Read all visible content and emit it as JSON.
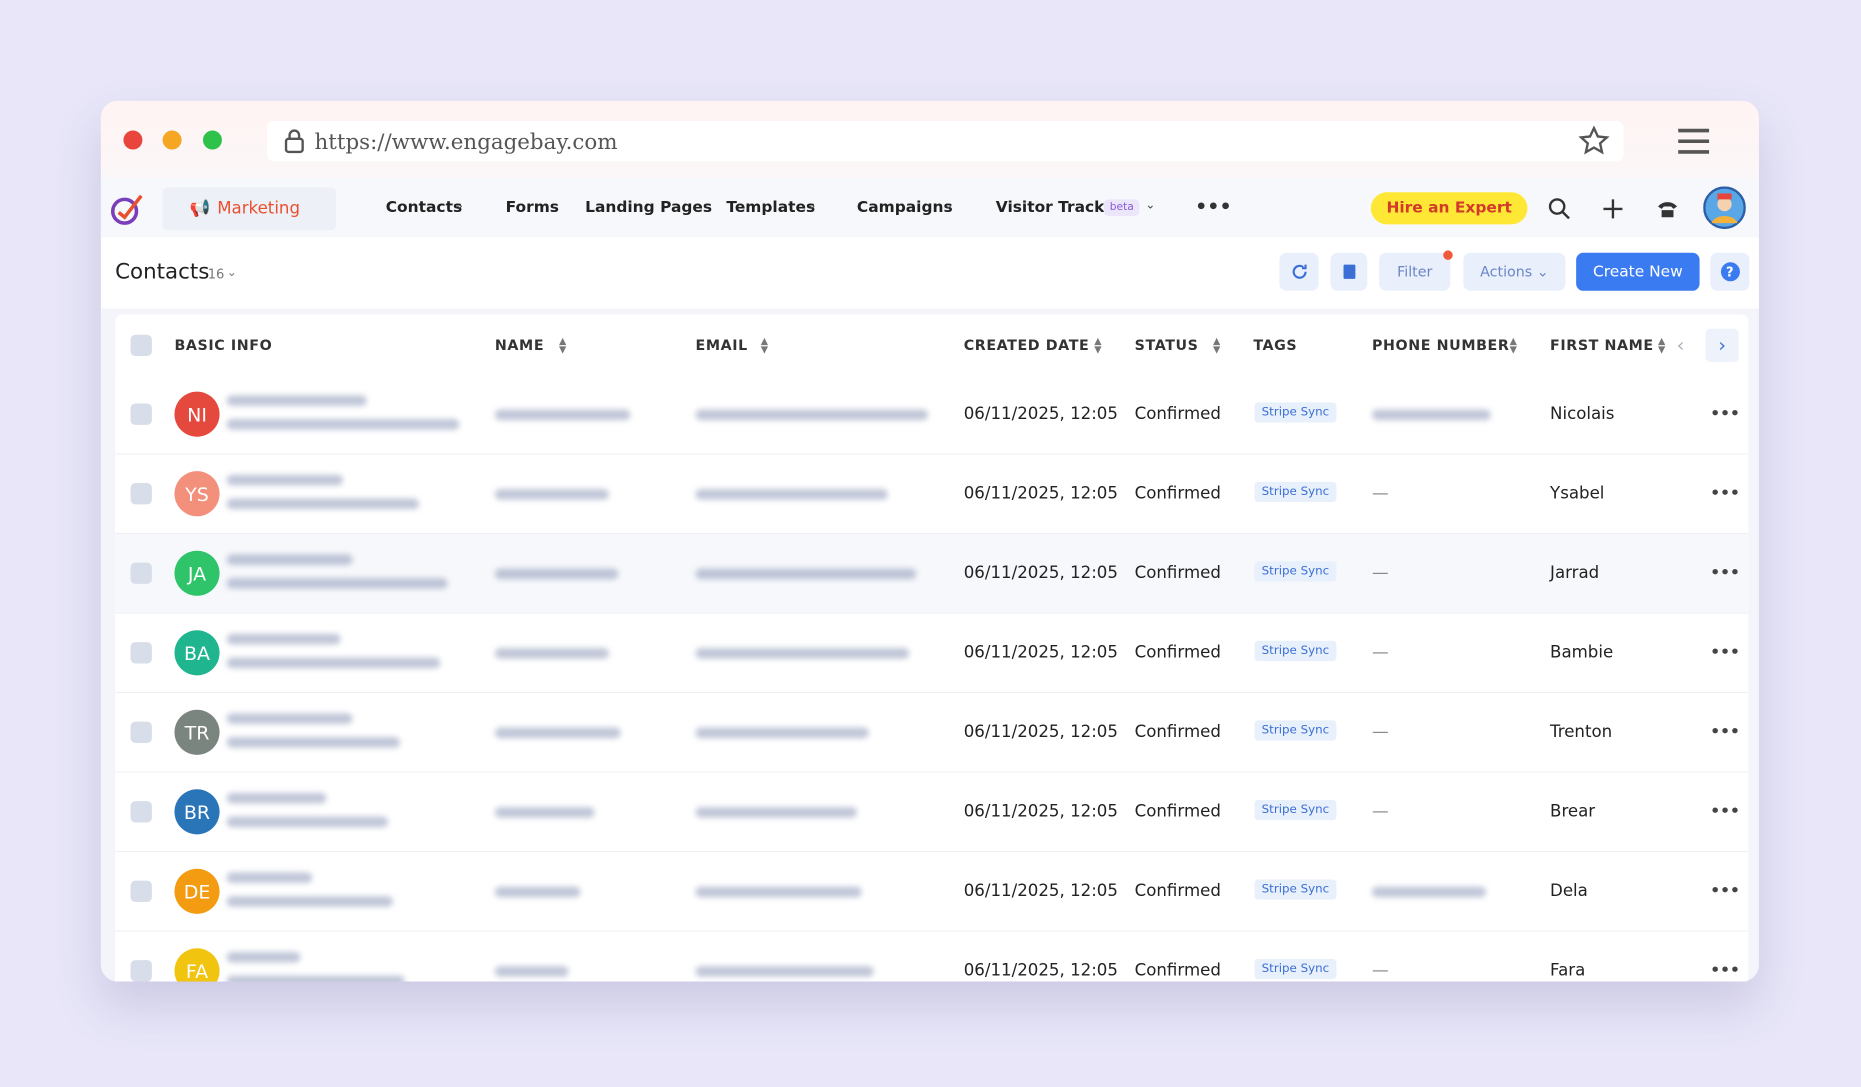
{
  "browser": {
    "url": "https://www.engagebay.com"
  },
  "nav": {
    "module": "Marketing",
    "items": [
      "Contacts",
      "Forms",
      "Landing Pages",
      "Templates",
      "Campaigns",
      "Visitor Tracker"
    ],
    "badge": "beta",
    "cta": "Hire an Expert"
  },
  "toolbar": {
    "title": "Contacts",
    "count": "16",
    "filter": "Filter",
    "actions": "Actions",
    "create": "Create New",
    "help": "?"
  },
  "table": {
    "columns": [
      "BASIC INFO",
      "NAME",
      "EMAIL",
      "CREATED DATE",
      "STATUS",
      "TAGS",
      "PHONE NUMBER",
      "FIRST NAME"
    ],
    "rows": [
      {
        "initials": "NI",
        "color": "#e5483c",
        "created": "06/11/2025, 12:05",
        "status": "Confirmed",
        "tag": "Stripe Sync",
        "first_name": "Nicolais"
      },
      {
        "initials": "YS",
        "color": "#f2907c",
        "created": "06/11/2025, 12:05",
        "status": "Confirmed",
        "tag": "Stripe Sync",
        "phone": "—",
        "first_name": "Ysabel"
      },
      {
        "initials": "JA",
        "color": "#2fc46a",
        "created": "06/11/2025, 12:05",
        "status": "Confirmed",
        "tag": "Stripe Sync",
        "phone": "—",
        "first_name": "Jarrad"
      },
      {
        "initials": "BA",
        "color": "#1fb58f",
        "created": "06/11/2025, 12:05",
        "status": "Confirmed",
        "tag": "Stripe Sync",
        "phone": "—",
        "first_name": "Bambie"
      },
      {
        "initials": "TR",
        "color": "#7b8580",
        "created": "06/11/2025, 12:05",
        "status": "Confirmed",
        "tag": "Stripe Sync",
        "phone": "—",
        "first_name": "Trenton"
      },
      {
        "initials": "BR",
        "color": "#2a74b8",
        "created": "06/11/2025, 12:05",
        "status": "Confirmed",
        "tag": "Stripe Sync",
        "phone": "—",
        "first_name": "Brear"
      },
      {
        "initials": "DE",
        "color": "#f39c12",
        "created": "06/11/2025, 12:05",
        "status": "Confirmed",
        "tag": "Stripe Sync",
        "first_name": "Dela"
      },
      {
        "initials": "FA",
        "color": "#f1c40f",
        "created": "06/11/2025, 12:05",
        "status": "Confirmed",
        "tag": "Stripe Sync",
        "phone": "—",
        "first_name": "Fara"
      }
    ]
  }
}
